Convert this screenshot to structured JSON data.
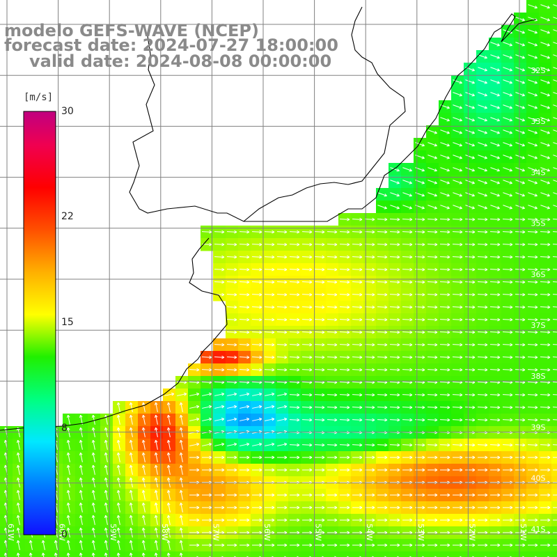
{
  "title": {
    "line1": "modelo GEFS-WAVE (NCEP)",
    "line2": "forecast date: 2024-07-27 18:00:00",
    "line3": "valid date: 2024-08-08 00:00:00"
  },
  "colorbar": {
    "unit": "[m/s]",
    "ticks": [
      "30",
      "22",
      "15",
      "8",
      "0"
    ],
    "tick_values": [
      30,
      22,
      15,
      8,
      0
    ],
    "range": [
      0,
      30
    ],
    "colors": [
      "#1010ff",
      "#00a0ff",
      "#00e8ff",
      "#00ff40",
      "#60e800",
      "#ffff00",
      "#ffa000",
      "#ff3000",
      "#ff0000",
      "#e00060",
      "#c00080"
    ]
  },
  "map": {
    "lat_labels": [
      "32S",
      "33S",
      "34S",
      "35S",
      "36S",
      "37S",
      "38S",
      "39S",
      "40S",
      "41S"
    ],
    "lon_labels": [
      "61W",
      "60W",
      "59W",
      "58W",
      "57W",
      "56W",
      "55W",
      "54W",
      "53W",
      "52W",
      "51W"
    ],
    "land_color": "#ffffff",
    "grid_color": "#808080",
    "arrow_color": "#ffffff",
    "coast_color": "#000000"
  }
}
